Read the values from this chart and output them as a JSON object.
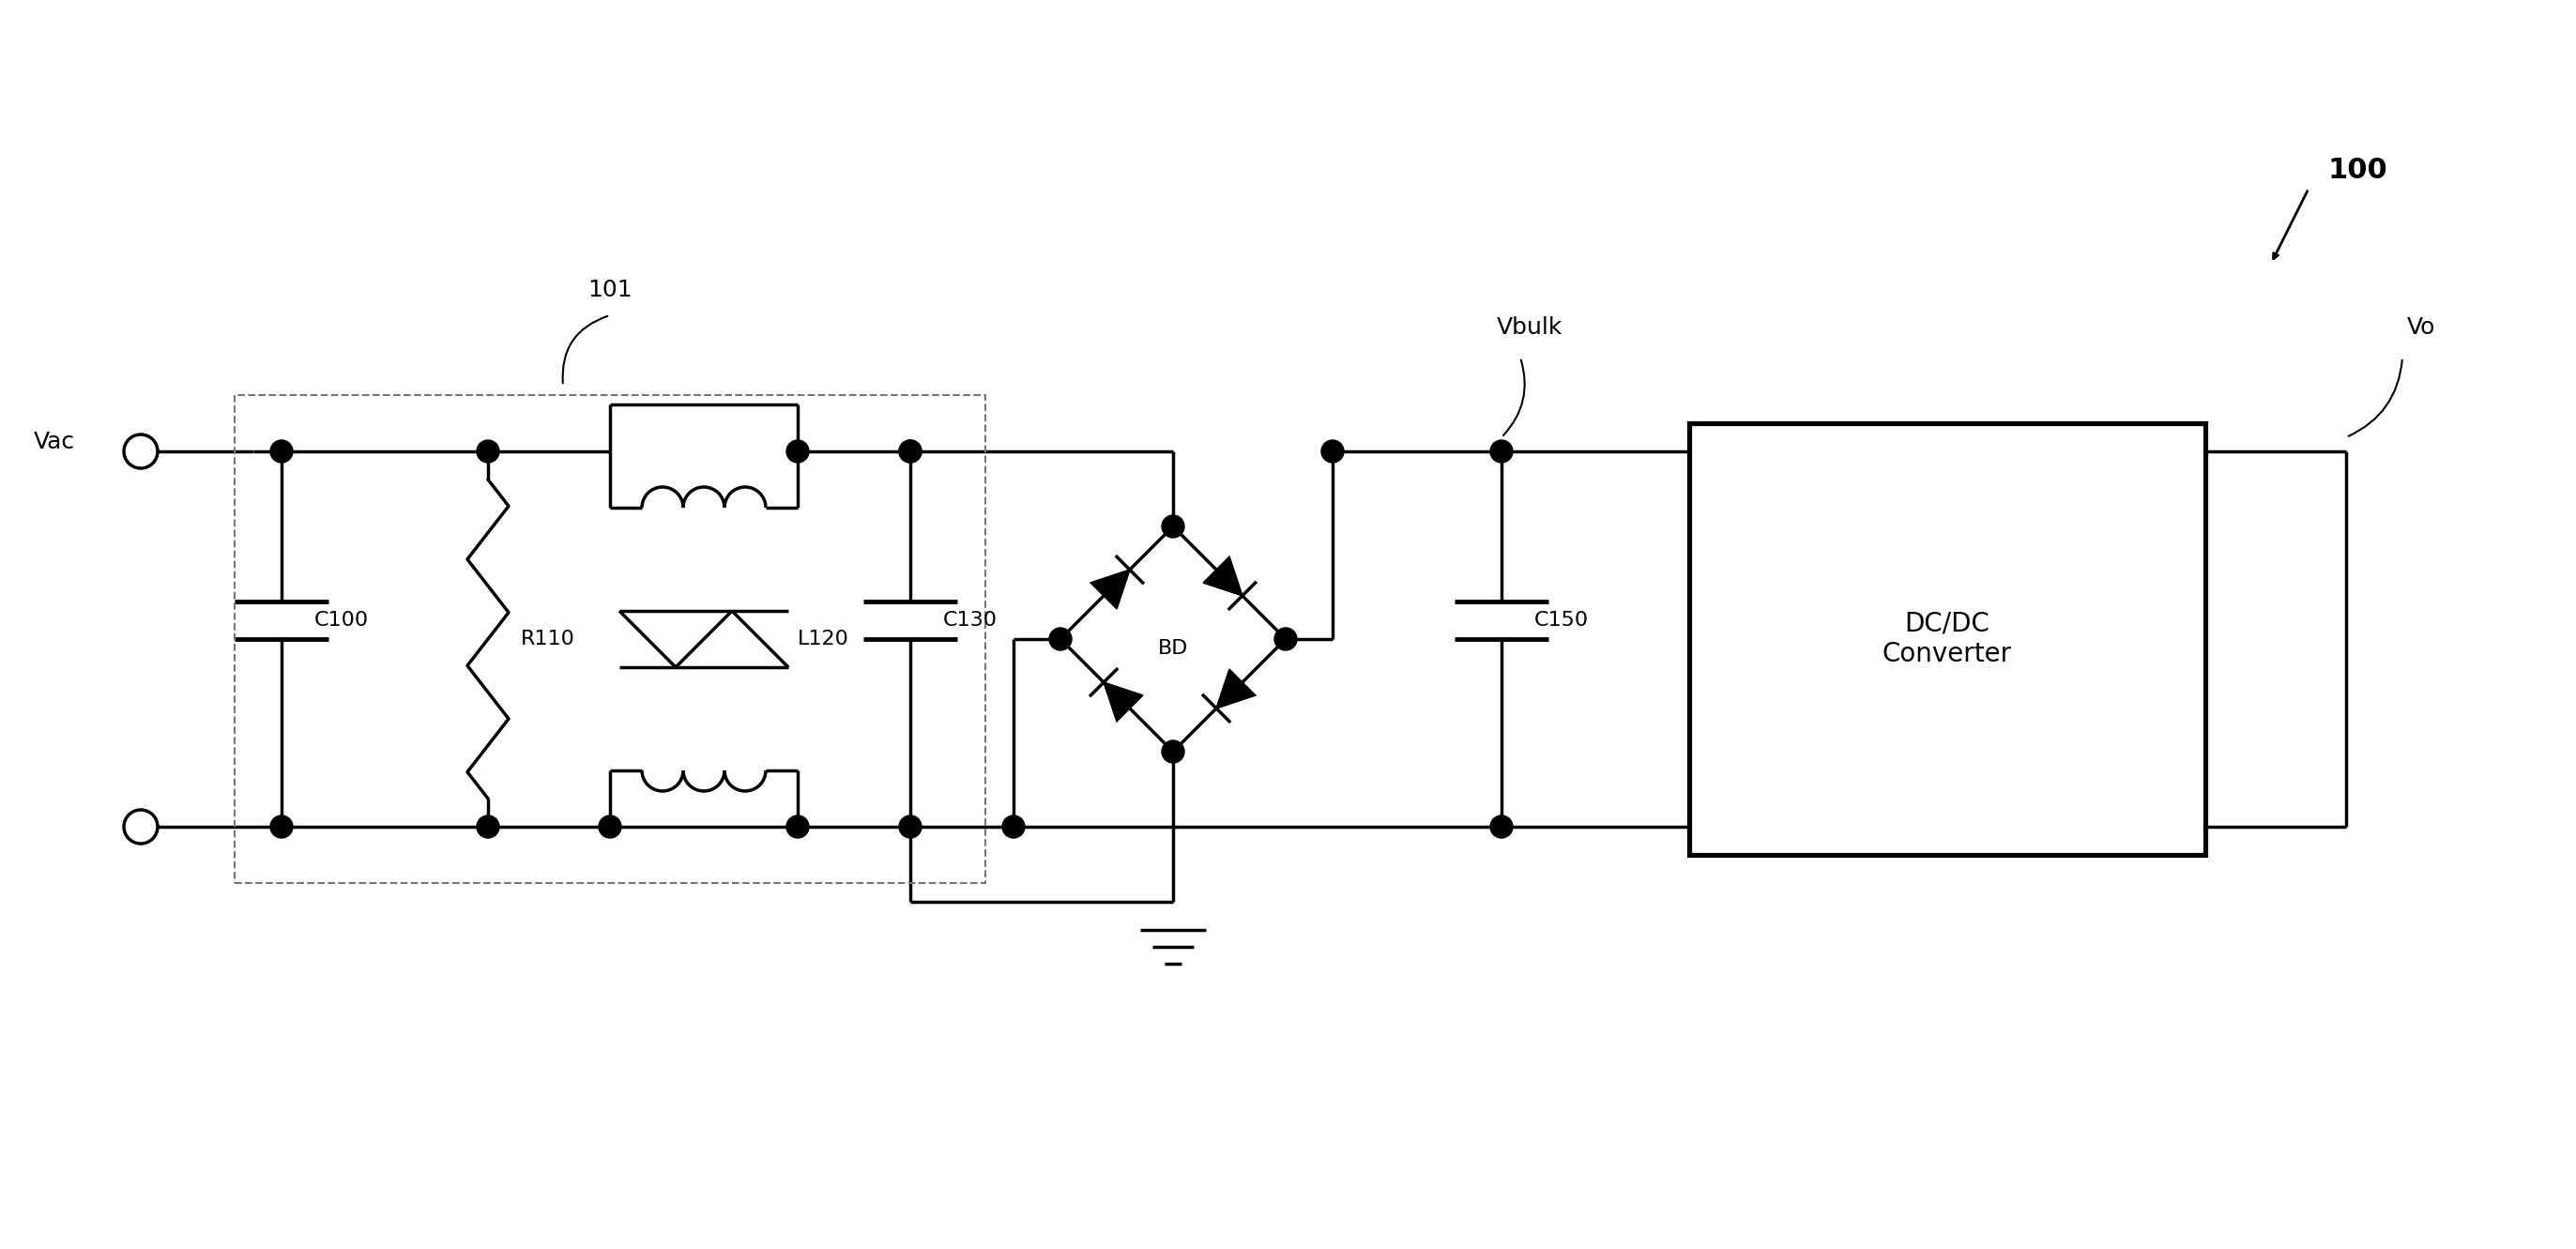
{
  "bg_color": "#ffffff",
  "line_color": "#000000",
  "line_width": 2.5,
  "dashed_color": "#888888",
  "fig_width": 27.45,
  "fig_height": 13.31,
  "labels": {
    "vac": "Vac",
    "c100": "C100",
    "r110": "R110",
    "l120": "L120",
    "c130": "C130",
    "bd": "BD",
    "c150": "C150",
    "dcdc": "DC/DC\nConverter",
    "vbulk": "Vbulk",
    "vo": "Vo",
    "ref101": "101",
    "ref100": "100"
  },
  "font_size": 18,
  "small_font": 16
}
